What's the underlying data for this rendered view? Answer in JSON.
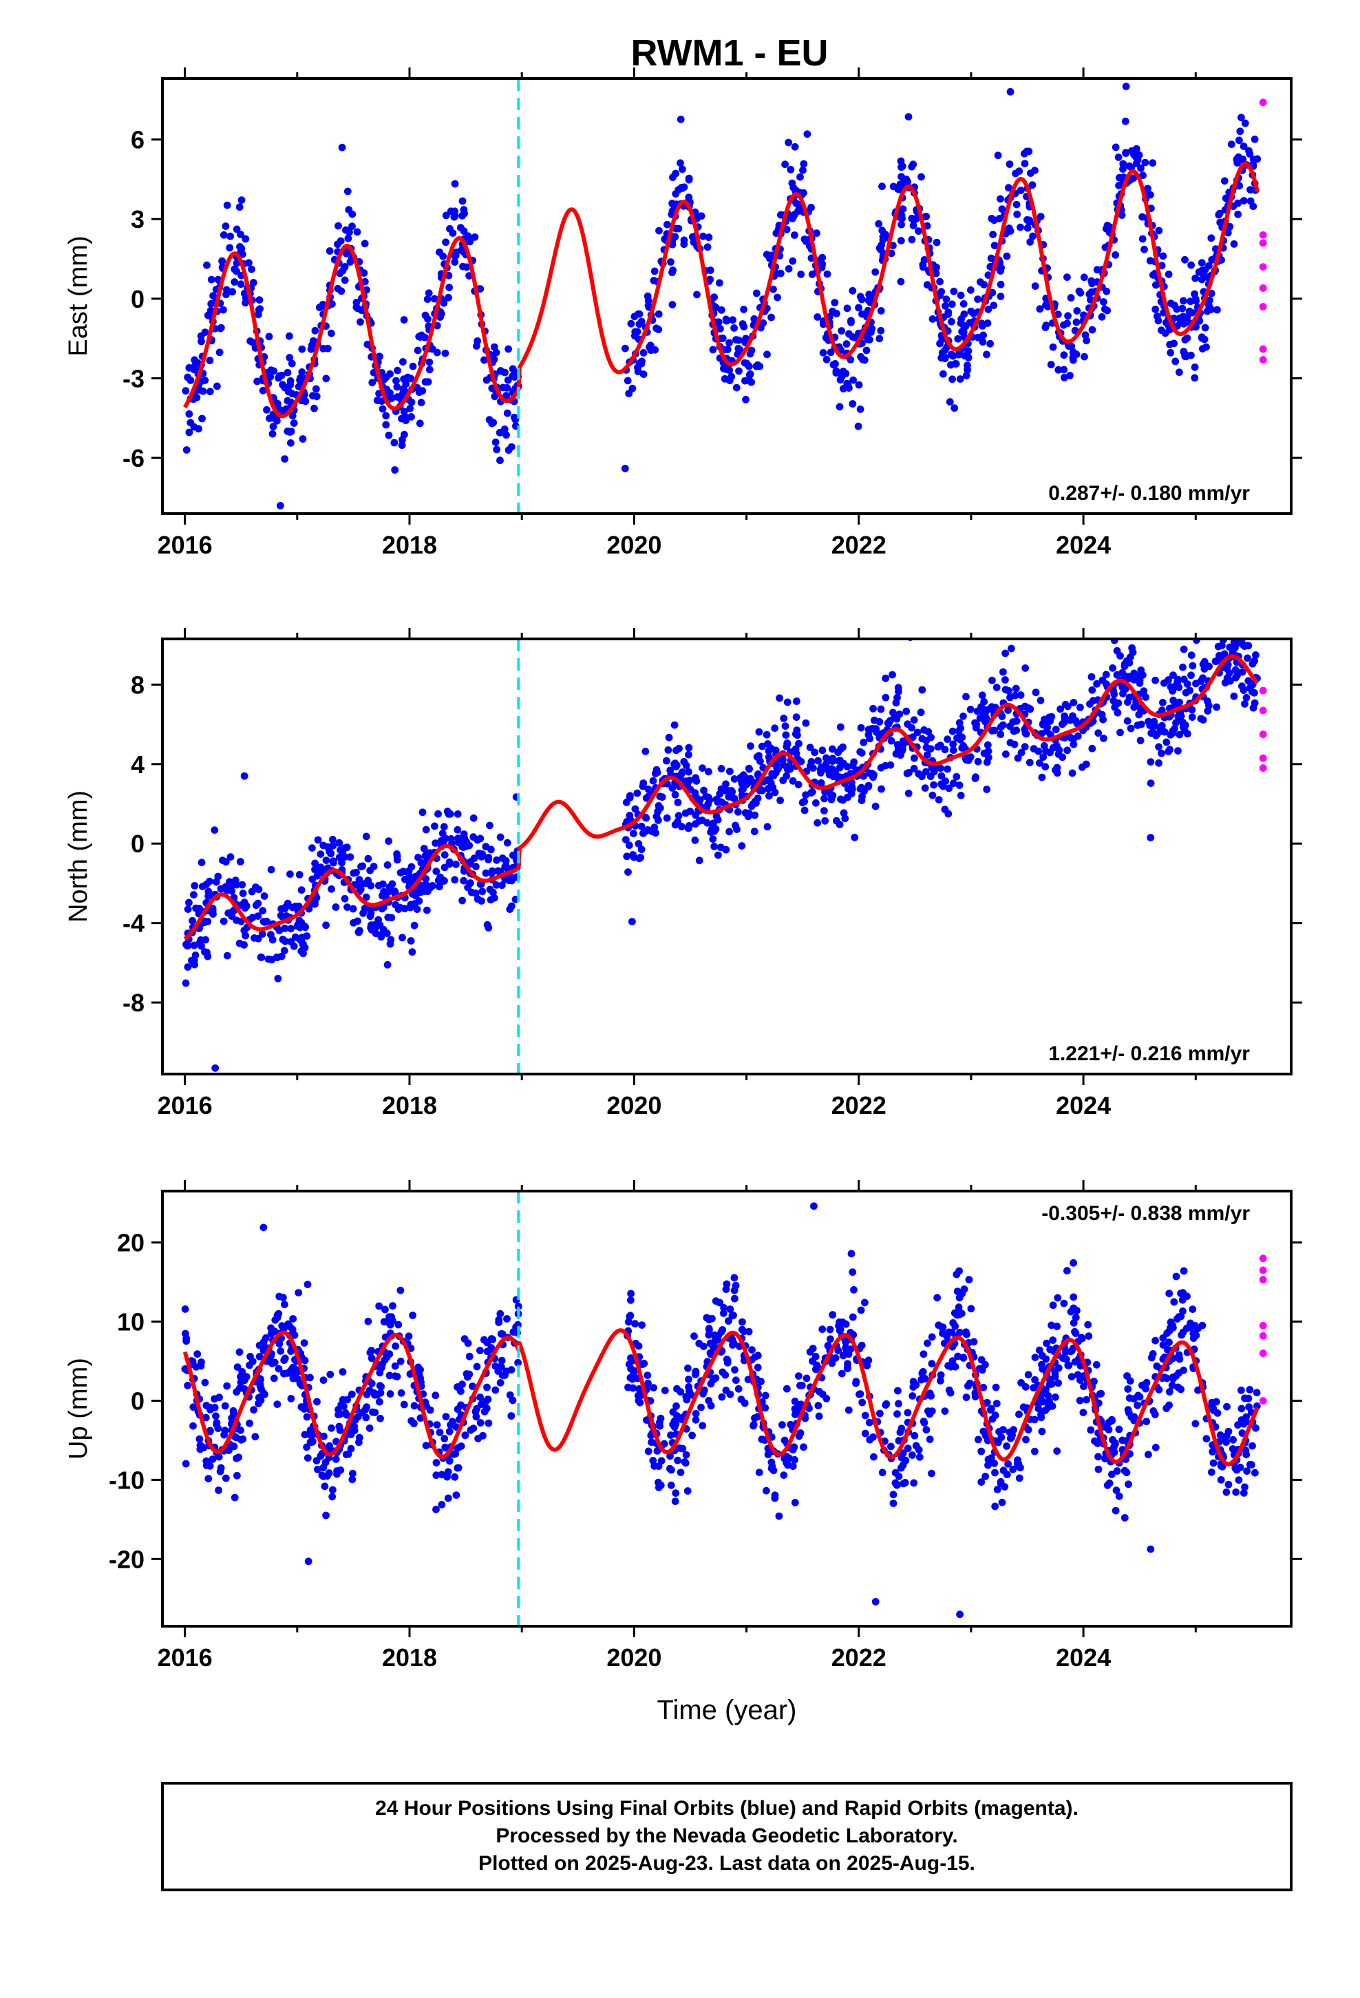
{
  "chart_data": {
    "type": "scatter",
    "title": "RWM1 - EU",
    "xlabel": "Time (year)",
    "xlim": [
      2015.8,
      2025.85
    ],
    "x_ticks": [
      "2016",
      "2018",
      "2020",
      "2022",
      "2024"
    ],
    "offset_epoch": 2018.97,
    "colors": {
      "final": "#0000ff",
      "rapid": "#ff00ff",
      "model": "#ff0000",
      "offset": "#00e5ff"
    },
    "legend": [
      {
        "name": "Final Orbits",
        "color": "#0000ff"
      },
      {
        "name": "Rapid Orbits",
        "color": "#ff00ff"
      }
    ],
    "panels": [
      {
        "id": "east",
        "ylabel": "East (mm)",
        "ylim": [
          -8.1,
          8.3
        ],
        "y_ticks": [
          "6",
          "3",
          "0",
          "-3",
          "-6"
        ],
        "y_tick_values": [
          6,
          3,
          0,
          -3,
          -6
        ],
        "rate_label": "0.287+/- 0.180 mm/yr",
        "rate_position": "bottom-right",
        "model": {
          "rate": 0.287,
          "amp_annual": 3.05,
          "phase_annual": 2016.17,
          "amp_semiannual": 0.5,
          "phase_semiannual": 2016.35,
          "ref": -1.9,
          "offset_at": 2018.97,
          "offset": 0.8
        },
        "scatter": {
          "start": 2016.0,
          "gap": [
            2018.97,
            2019.92
          ],
          "end": 2025.55,
          "count": 1400,
          "noise": 0.95,
          "outlier_rate": 0.02
        },
        "rapid_points": [
          {
            "x": 2025.6,
            "y": 7.4
          },
          {
            "x": 2025.6,
            "y": 2.4
          },
          {
            "x": 2025.6,
            "y": 2.1
          },
          {
            "x": 2025.6,
            "y": 1.2
          },
          {
            "x": 2025.6,
            "y": 0.4
          },
          {
            "x": 2025.6,
            "y": -0.3
          },
          {
            "x": 2025.6,
            "y": -1.9
          },
          {
            "x": 2025.6,
            "y": -2.3
          }
        ],
        "outliers": [
          {
            "x": 2017.4,
            "y": 5.7
          },
          {
            "x": 2016.85,
            "y": -7.8
          },
          {
            "x": 2024.38,
            "y": 8.0
          },
          {
            "x": 2023.35,
            "y": 7.8
          },
          {
            "x": 2019.92,
            "y": -6.4
          }
        ]
      },
      {
        "id": "north",
        "ylabel": "North (mm)",
        "ylim": [
          -11.6,
          10.3
        ],
        "y_ticks": [
          "8",
          "4",
          "0",
          "-4",
          "-8"
        ],
        "y_tick_values": [
          8,
          4,
          0,
          -4,
          -8
        ],
        "rate_label": "1.221+/- 0.216 mm/yr",
        "rate_position": "bottom-right",
        "model": {
          "rate": 1.221,
          "amp_annual": 1.05,
          "phase_annual": 2016.05,
          "amp_semiannual": 0.3,
          "phase_semiannual": 2016.2,
          "ref": -4.3,
          "offset_at": 2018.97,
          "offset": 1.0
        },
        "scatter": {
          "start": 2016.0,
          "gap": [
            2018.97,
            2019.92
          ],
          "end": 2025.55,
          "count": 1400,
          "noise": 1.15,
          "outlier_rate": 0.02
        },
        "rapid_points": [
          {
            "x": 2025.6,
            "y": 7.7
          },
          {
            "x": 2025.6,
            "y": 6.7
          },
          {
            "x": 2025.6,
            "y": 5.5
          },
          {
            "x": 2025.6,
            "y": 4.3
          },
          {
            "x": 2025.6,
            "y": 3.8
          }
        ],
        "outliers": [
          {
            "x": 2016.53,
            "y": 3.4
          },
          {
            "x": 2016.27,
            "y": -11.3
          },
          {
            "x": 2024.3,
            "y": 9.7
          }
        ]
      },
      {
        "id": "up",
        "ylabel": "Up (mm)",
        "ylim": [
          -28.5,
          26.5
        ],
        "y_ticks": [
          "20",
          "10",
          "0",
          "-10",
          "-20"
        ],
        "y_tick_values": [
          20,
          10,
          0,
          -10,
          -20
        ],
        "rate_label": "-0.305+/- 0.838 mm/yr",
        "rate_position": "top-right",
        "model": {
          "rate": -0.305,
          "amp_annual": 7.3,
          "phase_annual": 2016.58,
          "amp_semiannual": 1.2,
          "phase_semiannual": 2016.85,
          "ref": 1.5,
          "offset_at": 2018.97,
          "offset": 1.2
        },
        "scatter": {
          "start": 2016.0,
          "gap": [
            2018.97,
            2019.92
          ],
          "end": 2025.55,
          "count": 1400,
          "noise": 3.6,
          "outlier_rate": 0.02
        },
        "rapid_points": [
          {
            "x": 2025.6,
            "y": 18.0
          },
          {
            "x": 2025.6,
            "y": 16.5
          },
          {
            "x": 2025.6,
            "y": 15.3
          },
          {
            "x": 2025.6,
            "y": 9.5
          },
          {
            "x": 2025.6,
            "y": 8.2
          },
          {
            "x": 2025.6,
            "y": 6.0
          },
          {
            "x": 2025.6,
            "y": 0.0
          }
        ],
        "outliers": [
          {
            "x": 2021.6,
            "y": 24.6
          },
          {
            "x": 2016.7,
            "y": 21.9
          },
          {
            "x": 2022.9,
            "y": -27.0
          },
          {
            "x": 2022.15,
            "y": -25.4
          },
          {
            "x": 2017.1,
            "y": -20.3
          }
        ]
      }
    ]
  },
  "footer": {
    "line1": "24 Hour Positions Using Final Orbits (blue) and Rapid Orbits (magenta).",
    "line2": "Processed by the Nevada Geodetic Laboratory.",
    "line3": "Plotted on 2025-Aug-23. Last data on 2025-Aug-15."
  }
}
